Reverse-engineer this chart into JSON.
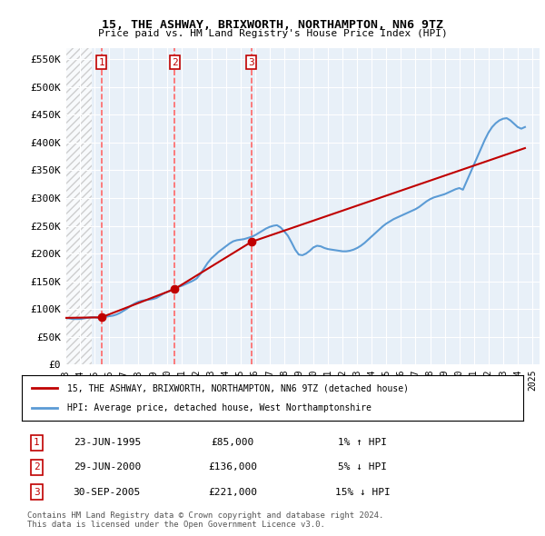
{
  "title": "15, THE ASHWAY, BRIXWORTH, NORTHAMPTON, NN6 9TZ",
  "subtitle": "Price paid vs. HM Land Registry's House Price Index (HPI)",
  "legend_line1": "15, THE ASHWAY, BRIXWORTH, NORTHAMPTON, NN6 9TZ (detached house)",
  "legend_line2": "HPI: Average price, detached house, West Northamptonshire",
  "footnote1": "Contains HM Land Registry data © Crown copyright and database right 2024.",
  "footnote2": "This data is licensed under the Open Government Licence v3.0.",
  "transactions": [
    {
      "num": 1,
      "date": "23-JUN-1995",
      "price": 85000,
      "pct": "1%",
      "dir": "↑",
      "x": 1995.47
    },
    {
      "num": 2,
      "date": "29-JUN-2000",
      "price": 136000,
      "pct": "5%",
      "dir": "↓",
      "x": 2000.49
    },
    {
      "num": 3,
      "date": "30-SEP-2005",
      "price": 221000,
      "pct": "15%",
      "dir": "↓",
      "x": 2005.75
    }
  ],
  "hpi_color": "#5b9bd5",
  "price_color": "#c00000",
  "vline_color": "#ff6666",
  "marker_color": "#c00000",
  "hpi_data": {
    "x": [
      1993,
      1993.25,
      1993.5,
      1993.75,
      1994,
      1994.25,
      1994.5,
      1994.75,
      1995,
      1995.25,
      1995.5,
      1995.75,
      1996,
      1996.25,
      1996.5,
      1996.75,
      1997,
      1997.25,
      1997.5,
      1997.75,
      1998,
      1998.25,
      1998.5,
      1998.75,
      1999,
      1999.25,
      1999.5,
      1999.75,
      2000,
      2000.25,
      2000.5,
      2000.75,
      2001,
      2001.25,
      2001.5,
      2001.75,
      2002,
      2002.25,
      2002.5,
      2002.75,
      2003,
      2003.25,
      2003.5,
      2003.75,
      2004,
      2004.25,
      2004.5,
      2004.75,
      2005,
      2005.25,
      2005.5,
      2005.75,
      2006,
      2006.25,
      2006.5,
      2006.75,
      2007,
      2007.25,
      2007.5,
      2007.75,
      2008,
      2008.25,
      2008.5,
      2008.75,
      2009,
      2009.25,
      2009.5,
      2009.75,
      2010,
      2010.25,
      2010.5,
      2010.75,
      2011,
      2011.25,
      2011.5,
      2011.75,
      2012,
      2012.25,
      2012.5,
      2012.75,
      2013,
      2013.25,
      2013.5,
      2013.75,
      2014,
      2014.25,
      2014.5,
      2014.75,
      2015,
      2015.25,
      2015.5,
      2015.75,
      2016,
      2016.25,
      2016.5,
      2016.75,
      2017,
      2017.25,
      2017.5,
      2017.75,
      2018,
      2018.25,
      2018.5,
      2018.75,
      2019,
      2019.25,
      2019.5,
      2019.75,
      2020,
      2020.25,
      2020.5,
      2020.75,
      2021,
      2021.25,
      2021.5,
      2021.75,
      2022,
      2022.25,
      2022.5,
      2022.75,
      2023,
      2023.25,
      2023.5,
      2023.75,
      2024,
      2024.25,
      2024.5
    ],
    "y": [
      84000,
      83000,
      82000,
      82000,
      82000,
      83000,
      84000,
      85000,
      85000,
      84000,
      85000,
      86000,
      87000,
      88000,
      90000,
      93000,
      97000,
      101000,
      106000,
      110000,
      113000,
      115000,
      116000,
      117000,
      118000,
      120000,
      124000,
      128000,
      131000,
      134000,
      137000,
      140000,
      142000,
      145000,
      148000,
      151000,
      155000,
      163000,
      173000,
      183000,
      191000,
      197000,
      203000,
      208000,
      213000,
      218000,
      222000,
      224000,
      225000,
      226000,
      228000,
      230000,
      233000,
      237000,
      241000,
      245000,
      248000,
      250000,
      251000,
      247000,
      240000,
      232000,
      220000,
      207000,
      198000,
      197000,
      200000,
      205000,
      211000,
      214000,
      213000,
      210000,
      208000,
      207000,
      206000,
      205000,
      204000,
      204000,
      205000,
      207000,
      210000,
      214000,
      219000,
      225000,
      231000,
      237000,
      243000,
      249000,
      254000,
      258000,
      262000,
      265000,
      268000,
      271000,
      274000,
      277000,
      280000,
      284000,
      289000,
      294000,
      298000,
      301000,
      303000,
      305000,
      307000,
      310000,
      313000,
      316000,
      318000,
      315000,
      330000,
      345000,
      360000,
      375000,
      390000,
      405000,
      418000,
      428000,
      435000,
      440000,
      443000,
      444000,
      440000,
      434000,
      428000,
      425000,
      428000
    ]
  },
  "price_data": {
    "x": [
      1993.0,
      1995.47,
      2000.49,
      2005.75,
      2024.5
    ],
    "y": [
      84000,
      85000,
      136000,
      221000,
      390000
    ]
  },
  "ylim": [
    0,
    570000
  ],
  "xlim": [
    1993,
    2025.5
  ],
  "yticks": [
    0,
    50000,
    100000,
    150000,
    200000,
    250000,
    300000,
    350000,
    400000,
    450000,
    500000,
    550000
  ],
  "ytick_labels": [
    "£0",
    "£50K",
    "£100K",
    "£150K",
    "£200K",
    "£250K",
    "£300K",
    "£350K",
    "£400K",
    "£450K",
    "£500K",
    "£550K"
  ],
  "xticks": [
    1993,
    1994,
    1995,
    1996,
    1997,
    1998,
    1999,
    2000,
    2001,
    2002,
    2003,
    2004,
    2005,
    2006,
    2007,
    2008,
    2009,
    2010,
    2011,
    2012,
    2013,
    2014,
    2015,
    2016,
    2017,
    2018,
    2019,
    2020,
    2021,
    2022,
    2023,
    2024,
    2025
  ],
  "hatch_color": "#cccccc",
  "bg_color": "#ffffff",
  "plot_bg": "#e8f0f8",
  "grid_color": "#ffffff"
}
